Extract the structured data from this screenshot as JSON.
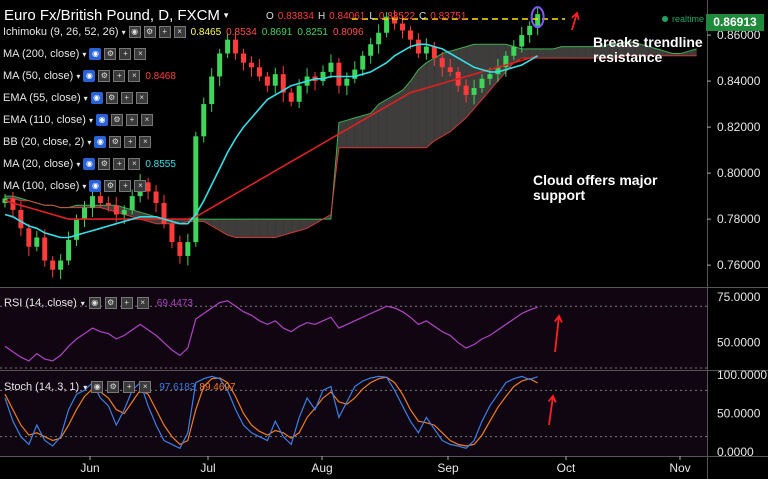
{
  "header": {
    "symbol": "Euro Fx/British Pound, D, FXCM",
    "ohlc": {
      "o_label": "O",
      "o": "0.83834",
      "h_label": "H",
      "h": "0.84061",
      "l_label": "L",
      "l": "0.83522",
      "c_label": "C",
      "c": "0.83751"
    },
    "realtime": "realtime",
    "last_price": "0.86913"
  },
  "indicators": [
    {
      "label": "Ichimoku (9, 26, 52, 26)",
      "values": [
        "0.8465",
        "0.8534",
        "0.8691",
        "0.8251",
        "0.8096"
      ],
      "colors": [
        "#ffff4d",
        "#ff4d4d",
        "#3fd45a",
        "#3fd45a",
        "#ff4d4d"
      ]
    },
    {
      "label": "MA (200, close)",
      "values": [],
      "colors": []
    },
    {
      "label": "MA (50, close)",
      "values": [
        "0.8468"
      ],
      "colors": [
        "#ff3b3b"
      ]
    },
    {
      "label": "EMA (55, close)",
      "values": [],
      "colors": []
    },
    {
      "label": "EMA (110, close)",
      "values": [],
      "colors": []
    },
    {
      "label": "BB (20, close, 2)",
      "values": [],
      "colors": []
    },
    {
      "label": "MA (20, close)",
      "values": [
        "0.8555"
      ],
      "colors": [
        "#33e0e8"
      ]
    },
    {
      "label": "MA (100, close)",
      "values": [],
      "colors": []
    }
  ],
  "annotations": {
    "breaks": [
      "Breaks trendline",
      "resistance"
    ],
    "cloud": [
      "Cloud offers major",
      "support"
    ]
  },
  "rsi_pane": {
    "label": "RSI (14, close)",
    "value": "69.4473"
  },
  "stoch_pane": {
    "label": "Stoch (14, 3, 1)",
    "k": "97.6183",
    "d": "89.4697"
  },
  "colors": {
    "bull": "#3fd45a",
    "bear": "#ff3b3b",
    "cloud": "#4a4646",
    "ma20": "#33e0e8",
    "ma50": "#e02020",
    "trend": "#ffe600",
    "rsi": "#b043c8",
    "stoch_k": "#3d7ee6",
    "stoch_d": "#f07c22",
    "arrow": "#ff2020"
  },
  "chart_data": [
    {
      "type": "candlestick",
      "title": "Euro Fx/British Pound, D, FXCM",
      "x_tick_labels": [
        "Jun",
        "Jul",
        "Aug",
        "Sep",
        "Oct",
        "Nov"
      ],
      "y_tick_labels": [
        "0.76000",
        "0.78000",
        "0.80000",
        "0.82000",
        "0.84000",
        "0.86000"
      ],
      "ylim": [
        0.7505,
        0.8735
      ],
      "close": [
        0.789,
        0.784,
        0.776,
        0.768,
        0.772,
        0.762,
        0.758,
        0.762,
        0.771,
        0.78,
        0.785,
        0.79,
        0.787,
        0.786,
        0.782,
        0.784,
        0.79,
        0.796,
        0.792,
        0.787,
        0.778,
        0.77,
        0.764,
        0.77,
        0.816,
        0.83,
        0.842,
        0.852,
        0.858,
        0.852,
        0.848,
        0.846,
        0.842,
        0.838,
        0.843,
        0.835,
        0.831,
        0.838,
        0.842,
        0.84,
        0.844,
        0.848,
        0.838,
        0.841,
        0.845,
        0.851,
        0.856,
        0.861,
        0.868,
        0.865,
        0.862,
        0.858,
        0.852,
        0.855,
        0.85,
        0.846,
        0.844,
        0.838,
        0.834,
        0.837,
        0.841,
        0.843,
        0.846,
        0.851,
        0.855,
        0.86,
        0.864,
        0.8691
      ],
      "ma20": [
        0.782,
        0.781,
        0.779,
        0.777,
        0.776,
        0.774,
        0.773,
        0.772,
        0.772,
        0.773,
        0.774,
        0.775,
        0.776,
        0.777,
        0.778,
        0.779,
        0.78,
        0.781,
        0.781,
        0.781,
        0.78,
        0.779,
        0.778,
        0.778,
        0.782,
        0.788,
        0.795,
        0.802,
        0.809,
        0.815,
        0.82,
        0.824,
        0.828,
        0.832,
        0.834,
        0.836,
        0.838,
        0.839,
        0.84,
        0.841,
        0.841,
        0.842,
        0.842,
        0.842,
        0.842,
        0.843,
        0.844,
        0.846,
        0.848,
        0.851,
        0.853,
        0.855,
        0.856,
        0.856,
        0.855,
        0.854,
        0.852,
        0.85,
        0.848,
        0.846,
        0.845,
        0.844,
        0.844,
        0.845,
        0.846,
        0.847,
        0.849,
        0.851
      ],
      "ma50": [
        0.788,
        0.787,
        0.786,
        0.785,
        0.784,
        0.783,
        0.782,
        0.781,
        0.78,
        0.78,
        0.78,
        0.78,
        0.78,
        0.78,
        0.78,
        0.78,
        0.78,
        0.78,
        0.78,
        0.78,
        0.78,
        0.78,
        0.78,
        0.78,
        0.781,
        0.783,
        0.785,
        0.787,
        0.789,
        0.791,
        0.793,
        0.795,
        0.797,
        0.799,
        0.801,
        0.803,
        0.805,
        0.807,
        0.809,
        0.811,
        0.813,
        0.815,
        0.817,
        0.819,
        0.821,
        0.823,
        0.825,
        0.827,
        0.829,
        0.831,
        0.833,
        0.835,
        0.836,
        0.837,
        0.838,
        0.839,
        0.84,
        0.841,
        0.842,
        0.843,
        0.844,
        0.845,
        0.846,
        0.847,
        0.848,
        0.849,
        0.85,
        0.851
      ],
      "cloud_top": [
        0.79,
        0.79,
        0.789,
        0.788,
        0.787,
        0.786,
        0.786,
        0.785,
        0.785,
        0.786,
        0.786,
        0.786,
        0.786,
        0.786,
        0.786,
        0.785,
        0.784,
        0.783,
        0.782,
        0.781,
        0.78,
        0.78,
        0.78,
        0.78,
        0.78,
        0.78,
        0.78,
        0.78,
        0.78,
        0.78,
        0.78,
        0.78,
        0.78,
        0.78,
        0.78,
        0.78,
        0.78,
        0.78,
        0.78,
        0.78,
        0.78,
        0.78,
        0.822,
        0.823,
        0.824,
        0.825,
        0.826,
        0.83,
        0.832,
        0.834,
        0.836,
        0.84,
        0.845,
        0.848,
        0.85,
        0.852,
        0.853,
        0.854,
        0.855,
        0.856,
        0.856,
        0.856,
        0.856,
        0.856,
        0.855,
        0.854,
        0.854,
        0.854,
        0.854,
        0.854,
        0.855,
        0.855,
        0.855,
        0.855,
        0.855,
        0.855,
        0.856,
        0.856,
        0.857,
        0.857,
        0.856,
        0.855,
        0.854,
        0.853,
        0.852,
        0.852,
        0.853,
        0.854
      ],
      "cloud_bottom": [
        0.789,
        0.789,
        0.788,
        0.788,
        0.787,
        0.786,
        0.786,
        0.785,
        0.785,
        0.785,
        0.785,
        0.785,
        0.785,
        0.784,
        0.783,
        0.782,
        0.781,
        0.78,
        0.779,
        0.778,
        0.778,
        0.778,
        0.778,
        0.779,
        0.779,
        0.779,
        0.777,
        0.775,
        0.773,
        0.772,
        0.772,
        0.772,
        0.772,
        0.772,
        0.772,
        0.773,
        0.774,
        0.775,
        0.776,
        0.778,
        0.78,
        0.782,
        0.811,
        0.811,
        0.811,
        0.811,
        0.811,
        0.811,
        0.811,
        0.811,
        0.811,
        0.811,
        0.811,
        0.811,
        0.814,
        0.816,
        0.818,
        0.821,
        0.824,
        0.828,
        0.832,
        0.836,
        0.84,
        0.844,
        0.848,
        0.85,
        0.85,
        0.85,
        0.85,
        0.85,
        0.85,
        0.85,
        0.85,
        0.85,
        0.85,
        0.85,
        0.85,
        0.85,
        0.851,
        0.851,
        0.851,
        0.851,
        0.851,
        0.851,
        0.851,
        0.851,
        0.851,
        0.851
      ],
      "trendline": [
        0.867,
        0.867
      ],
      "annotations": [
        "Breaks trendline resistance",
        "Cloud offers major support"
      ]
    },
    {
      "type": "line",
      "title": "RSI (14, close)",
      "ylim": [
        35,
        80
      ],
      "y_tick_labels": [
        "50.0000",
        "75.0000"
      ],
      "values": [
        48,
        45,
        42,
        40,
        44,
        41,
        40,
        43,
        48,
        52,
        55,
        58,
        56,
        55,
        52,
        54,
        57,
        60,
        57,
        54,
        50,
        46,
        43,
        47,
        63,
        66,
        69,
        72,
        73,
        70,
        67,
        65,
        62,
        60,
        62,
        58,
        56,
        59,
        61,
        60,
        62,
        64,
        58,
        60,
        62,
        64,
        66,
        68,
        70,
        69,
        67,
        64,
        60,
        62,
        59,
        56,
        54,
        50,
        47,
        49,
        52,
        54,
        57,
        60,
        63,
        66,
        68,
        69.4473
      ]
    },
    {
      "type": "line",
      "title": "Stoch (14, 3, 1)",
      "ylim": [
        -5,
        105
      ],
      "y_tick_labels": [
        "0.0000",
        "50.0000",
        "100.0000"
      ],
      "k": [
        70,
        40,
        20,
        10,
        35,
        15,
        8,
        20,
        55,
        75,
        80,
        90,
        70,
        60,
        35,
        55,
        80,
        90,
        60,
        35,
        15,
        10,
        5,
        25,
        90,
        95,
        98,
        95,
        80,
        55,
        35,
        25,
        20,
        15,
        40,
        20,
        10,
        45,
        70,
        55,
        80,
        85,
        45,
        65,
        85,
        92,
        96,
        98,
        97,
        80,
        60,
        40,
        25,
        45,
        30,
        15,
        10,
        8,
        5,
        15,
        40,
        60,
        75,
        90,
        95,
        98,
        94,
        97.6183
      ],
      "d": [
        75,
        55,
        35,
        22,
        25,
        20,
        15,
        18,
        35,
        55,
        72,
        82,
        78,
        70,
        55,
        50,
        65,
        80,
        75,
        55,
        35,
        20,
        10,
        15,
        55,
        85,
        95,
        96,
        90,
        72,
        50,
        35,
        27,
        22,
        28,
        25,
        18,
        25,
        45,
        57,
        70,
        78,
        65,
        62,
        70,
        82,
        90,
        95,
        97,
        90,
        75,
        55,
        40,
        38,
        35,
        25,
        15,
        10,
        8,
        10,
        22,
        40,
        58,
        72,
        85,
        92,
        95,
        89.4697
      ]
    }
  ]
}
